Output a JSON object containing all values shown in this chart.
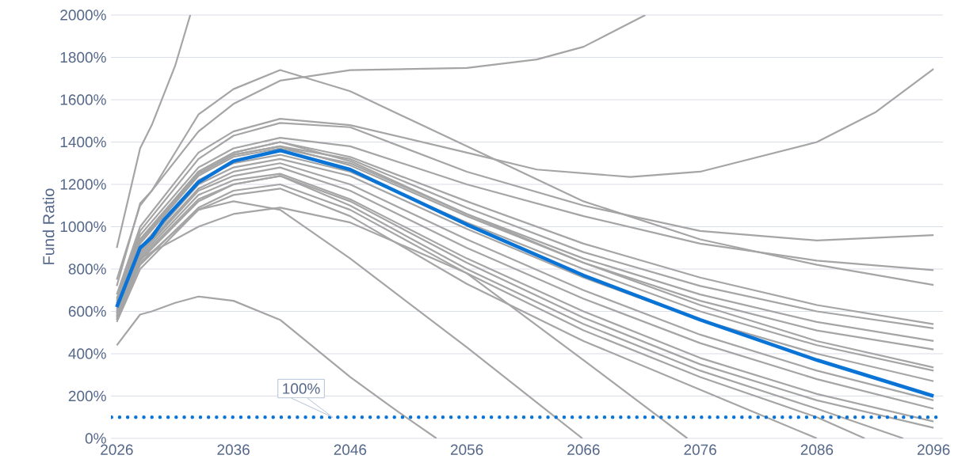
{
  "chart_data": {
    "type": "line",
    "ylabel": "Fund Ratio",
    "xlim": [
      2025.5,
      2096.8
    ],
    "ylim": [
      0,
      2000
    ],
    "xticks": [
      2026,
      2036,
      2046,
      2056,
      2066,
      2076,
      2086,
      2096
    ],
    "yticks": [
      {
        "value": 0,
        "label": "0%"
      },
      {
        "value": 200,
        "label": "200%"
      },
      {
        "value": 400,
        "label": "400%"
      },
      {
        "value": 600,
        "label": "600%"
      },
      {
        "value": 800,
        "label": "800%"
      },
      {
        "value": 1000,
        "label": "1000%"
      },
      {
        "value": 1200,
        "label": "1200%"
      },
      {
        "value": 1400,
        "label": "1400%"
      },
      {
        "value": 1600,
        "label": "1600%"
      },
      {
        "value": 1800,
        "label": "1800%"
      },
      {
        "value": 2000,
        "label": "2000%"
      }
    ],
    "grid": "y",
    "marker": "none",
    "line_style": "solid",
    "ref_lines": [
      {
        "axis": "y",
        "value": 100,
        "label": "100%",
        "color": "#0a74d6",
        "line_style": "dotted"
      }
    ],
    "series": [
      {
        "color": "#a5a5a5",
        "x": [
          2026,
          2028,
          2029,
          2031,
          2032.3
        ],
        "values": [
          900,
          1370,
          1480,
          1760,
          2000
        ]
      },
      {
        "color": "#a5a5a5",
        "x": [
          2026,
          2028,
          2033,
          2036,
          2040,
          2046,
          2056,
          2062,
          2066,
          2071.3
        ],
        "values": [
          750,
          1100,
          1450,
          1580,
          1690,
          1740,
          1750,
          1790,
          1850,
          2000
        ]
      },
      {
        "color": "#a5a5a5",
        "x": [
          2026,
          2028,
          2029,
          2033,
          2036,
          2040,
          2046,
          2056,
          2066,
          2076,
          2086,
          2096
        ],
        "values": [
          720,
          1110,
          1170,
          1530,
          1650,
          1740,
          1640,
          1380,
          1120,
          940,
          820,
          725
        ]
      },
      {
        "color": "#a5a5a5",
        "x": [
          2026,
          2028,
          2033,
          2036,
          2040,
          2046,
          2056,
          2062,
          2070,
          2076,
          2086,
          2091,
          2096
        ],
        "values": [
          680,
          1000,
          1350,
          1450,
          1510,
          1480,
          1350,
          1270,
          1235,
          1260,
          1400,
          1540,
          1745
        ]
      },
      {
        "color": "#a5a5a5",
        "x": [
          2026,
          2028,
          2033,
          2036,
          2040,
          2046,
          2056,
          2066,
          2076,
          2086,
          2096
        ],
        "values": [
          660,
          980,
          1320,
          1430,
          1490,
          1470,
          1260,
          1100,
          980,
          935,
          960
        ]
      },
      {
        "color": "#a5a5a5",
        "x": [
          2026,
          2028,
          2033,
          2036,
          2040,
          2046,
          2056,
          2066,
          2076,
          2086,
          2096
        ],
        "values": [
          650,
          960,
          1280,
          1370,
          1420,
          1380,
          1200,
          1050,
          920,
          840,
          795
        ]
      },
      {
        "color": "#a5a5a5",
        "x": [
          2026,
          2028,
          2033,
          2036,
          2040,
          2046,
          2056,
          2066,
          2076,
          2086,
          2096
        ],
        "values": [
          640,
          940,
          1260,
          1350,
          1400,
          1330,
          1120,
          920,
          760,
          630,
          540
        ]
      },
      {
        "color": "#a5a5a5",
        "x": [
          2026,
          2028,
          2033,
          2036,
          2040,
          2046,
          2056,
          2066,
          2076,
          2086,
          2096
        ],
        "values": [
          630,
          930,
          1250,
          1340,
          1380,
          1320,
          1090,
          880,
          720,
          600,
          520
        ]
      },
      {
        "color": "#a5a5a5",
        "x": [
          2026,
          2028,
          2033,
          2036,
          2040,
          2046,
          2056,
          2066,
          2076,
          2086,
          2096
        ],
        "values": [
          620,
          920,
          1240,
          1330,
          1370,
          1300,
          1060,
          850,
          680,
          550,
          460
        ]
      },
      {
        "color": "#a5a5a5",
        "x": [
          2026,
          2028,
          2033,
          2036,
          2040,
          2046,
          2056,
          2066,
          2076,
          2086,
          2096
        ],
        "values": [
          630,
          930,
          1250,
          1340,
          1380,
          1290,
          1050,
          830,
          650,
          510,
          420
        ]
      },
      {
        "color": "#a5a5a5",
        "x": [
          2026,
          2028,
          2033,
          2036,
          2040,
          2046,
          2056,
          2066,
          2076,
          2086,
          2096
        ],
        "values": [
          640,
          940,
          1260,
          1350,
          1400,
          1310,
          1060,
          830,
          630,
          460,
          335
        ]
      },
      {
        "color": "#a5a5a5",
        "x": [
          2026,
          2028,
          2033,
          2036,
          2040,
          2046,
          2056,
          2066,
          2076,
          2086,
          2096
        ],
        "values": [
          610,
          900,
          1220,
          1300,
          1340,
          1260,
          1020,
          800,
          600,
          440,
          320
        ]
      },
      {
        "color": "#a5a5a5",
        "x": [
          2026,
          2028,
          2033,
          2036,
          2040,
          2046,
          2056,
          2066,
          2076,
          2086,
          2096
        ],
        "values": [
          600,
          890,
          1200,
          1280,
          1320,
          1240,
          990,
          760,
          560,
          400,
          270
        ]
      },
      {
        "color": "#a5a5a5",
        "x": [
          2026,
          2028,
          2033,
          2036,
          2040,
          2046,
          2056,
          2066,
          2076,
          2086,
          2096
        ],
        "values": [
          590,
          880,
          1180,
          1260,
          1300,
          1200,
          940,
          700,
          490,
          320,
          180
        ]
      },
      {
        "color": "#a5a5a5",
        "x": [
          2026,
          2028,
          2033,
          2036,
          2040,
          2046,
          2056,
          2066,
          2076,
          2086,
          2096
        ],
        "values": [
          590,
          870,
          1170,
          1240,
          1280,
          1170,
          900,
          660,
          450,
          280,
          140
        ]
      },
      {
        "color": "#a5a5a5",
        "x": [
          2026,
          2028,
          2033,
          2036,
          2040,
          2046,
          2056,
          2066,
          2076,
          2086,
          2096
        ],
        "values": [
          580,
          860,
          1150,
          1220,
          1250,
          1130,
          850,
          600,
          380,
          210,
          80
        ]
      },
      {
        "color": "#a5a5a5",
        "x": [
          2026,
          2028,
          2033,
          2036,
          2040,
          2046,
          2056,
          2066,
          2076,
          2086,
          2096
        ],
        "values": [
          570,
          850,
          1130,
          1200,
          1240,
          1120,
          830,
          570,
          350,
          180,
          50
        ]
      },
      {
        "color": "#a5a5a5",
        "x": [
          2026,
          2028,
          2033,
          2036,
          2040,
          2046,
          2056,
          2066,
          2076,
          2086,
          2093.4
        ],
        "values": [
          570,
          840,
          1120,
          1200,
          1240,
          1100,
          800,
          540,
          320,
          140,
          0
        ]
      },
      {
        "color": "#a5a5a5",
        "x": [
          2026,
          2028,
          2033,
          2036,
          2040,
          2046,
          2056,
          2066,
          2076,
          2086,
          2090.1
        ],
        "values": [
          560,
          820,
          1090,
          1170,
          1200,
          1080,
          780,
          510,
          290,
          100,
          0
        ]
      },
      {
        "color": "#a5a5a5",
        "x": [
          2026,
          2028,
          2033,
          2036,
          2040,
          2046,
          2056,
          2066,
          2076,
          2086
        ],
        "values": [
          550,
          800,
          1080,
          1150,
          1180,
          1050,
          730,
          460,
          230,
          0
        ]
      },
      {
        "color": "#a5a5a5",
        "x": [
          2026,
          2028,
          2033,
          2036,
          2040,
          2046,
          2056,
          2066,
          2074.9
        ],
        "values": [
          560,
          850,
          1000,
          1060,
          1090,
          1020,
          780,
          370,
          0
        ]
      },
      {
        "color": "#a5a5a5",
        "x": [
          2026,
          2028,
          2033,
          2036,
          2040,
          2046,
          2056,
          2065.9
        ],
        "values": [
          580,
          830,
          1080,
          1120,
          1080,
          850,
          430,
          0
        ]
      },
      {
        "color": "#a5a5a5",
        "x": [
          2026,
          2028,
          2029,
          2031,
          2033,
          2036,
          2040,
          2046,
          2050,
          2053.4
        ],
        "values": [
          440,
          585,
          600,
          640,
          670,
          650,
          560,
          290,
          130,
          0
        ]
      },
      {
        "color": "#0a74d6",
        "x": [
          2026,
          2028,
          2029,
          2030,
          2033,
          2036,
          2040,
          2046,
          2056,
          2066,
          2076,
          2086,
          2096
        ],
        "values": [
          620,
          900,
          950,
          1030,
          1210,
          1310,
          1360,
          1270,
          1010,
          770,
          560,
          370,
          200
        ]
      }
    ]
  }
}
